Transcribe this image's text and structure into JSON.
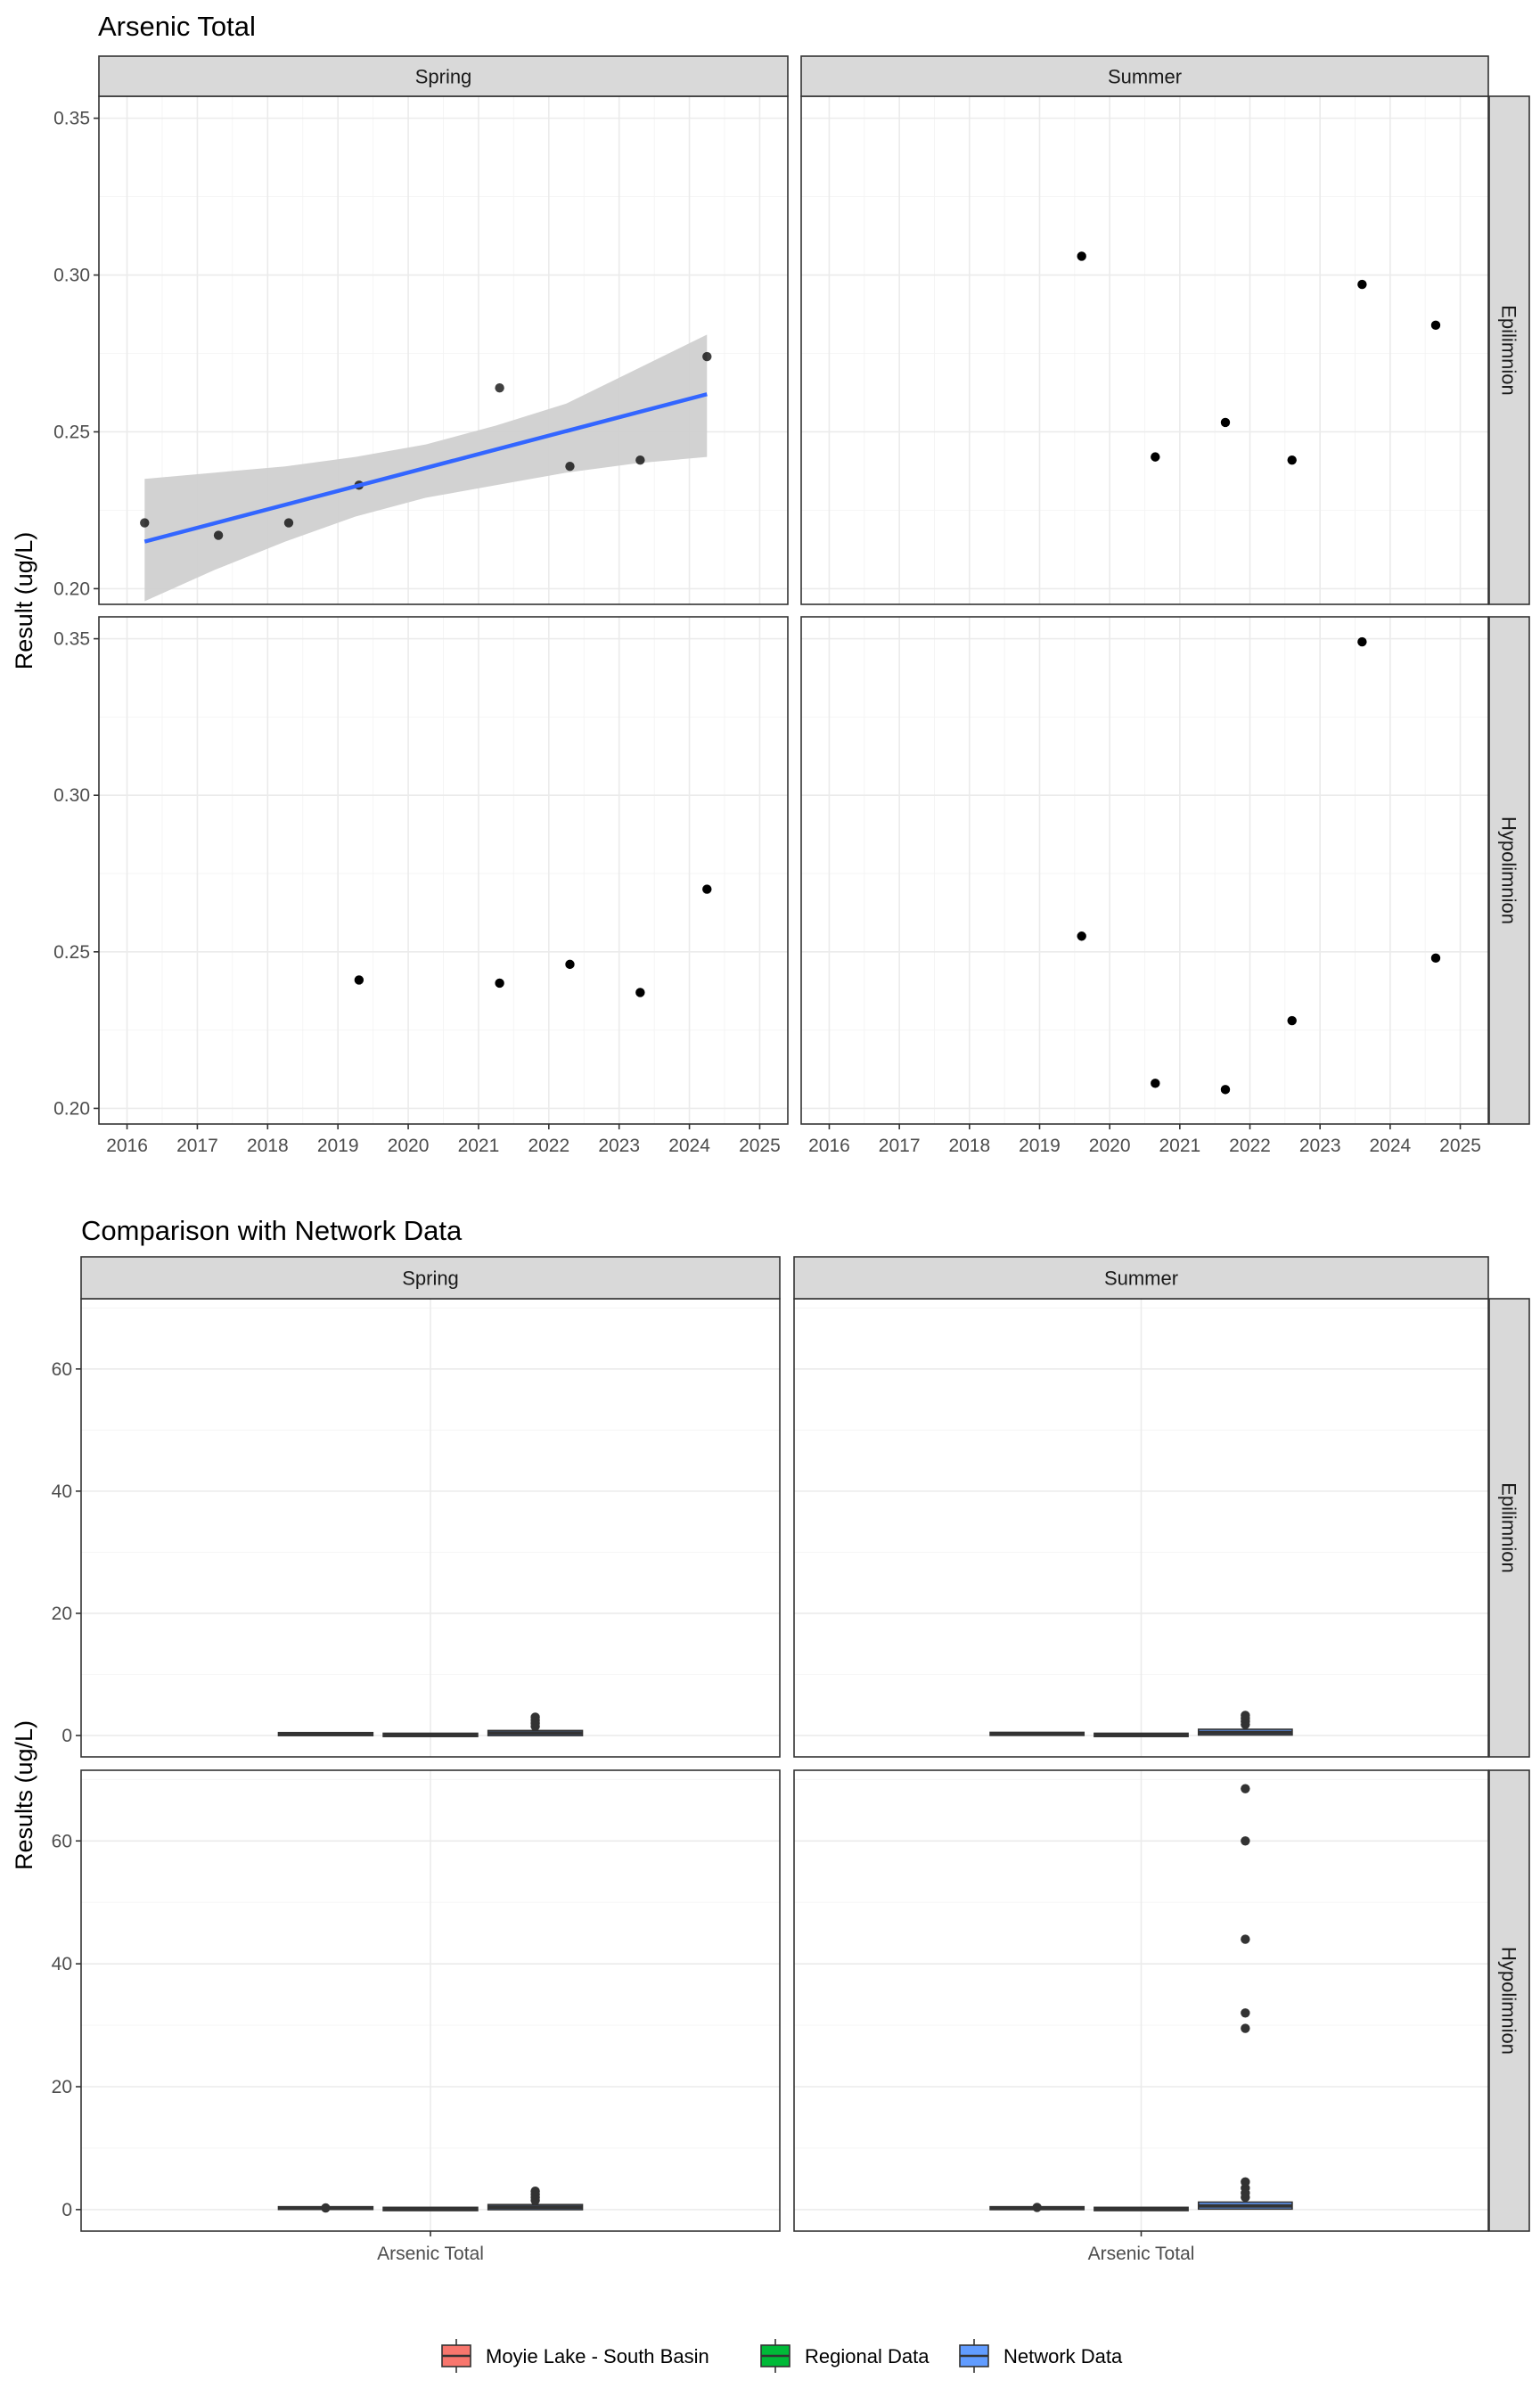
{
  "chart_data": [
    {
      "type": "scatter",
      "title": "Arsenic Total",
      "ylabel": "Result (ug/L)",
      "xlabel": "",
      "x_ticks": [
        "2016",
        "2017",
        "2018",
        "2019",
        "2020",
        "2021",
        "2022",
        "2023",
        "2024",
        "2025"
      ],
      "y_ticks": [
        "0.20",
        "0.25",
        "0.30",
        "0.35"
      ],
      "xlim": [
        2015.6,
        2025.4
      ],
      "ylim": [
        0.195,
        0.357
      ],
      "grid": true,
      "col_facets": [
        "Spring",
        "Summer"
      ],
      "row_facets": [
        "Epilimnion",
        "Hypolimnion"
      ],
      "panels": [
        {
          "col": "Spring",
          "row": "Epilimnion",
          "points": [
            {
              "x": 2016.25,
              "y": 0.221
            },
            {
              "x": 2017.3,
              "y": 0.217
            },
            {
              "x": 2018.3,
              "y": 0.221
            },
            {
              "x": 2019.3,
              "y": 0.233
            },
            {
              "x": 2021.3,
              "y": 0.264
            },
            {
              "x": 2022.3,
              "y": 0.239
            },
            {
              "x": 2023.3,
              "y": 0.241
            },
            {
              "x": 2024.25,
              "y": 0.274
            }
          ],
          "trend": {
            "x": [
              2016.25,
              2024.25
            ],
            "y": [
              0.215,
              0.262
            ]
          },
          "band": {
            "x": [
              2016.25,
              2017.25,
              2018.25,
              2019.25,
              2020.25,
              2021.25,
              2022.25,
              2023.25,
              2024.25
            ],
            "lower": [
              0.196,
              0.206,
              0.215,
              0.223,
              0.229,
              0.233,
              0.237,
              0.24,
              0.242
            ],
            "upper": [
              0.235,
              0.237,
              0.239,
              0.242,
              0.246,
              0.252,
              0.259,
              0.27,
              0.281
            ]
          }
        },
        {
          "col": "Summer",
          "row": "Epilimnion",
          "points": [
            {
              "x": 2019.6,
              "y": 0.306
            },
            {
              "x": 2020.65,
              "y": 0.242
            },
            {
              "x": 2021.65,
              "y": 0.253
            },
            {
              "x": 2022.6,
              "y": 0.241
            },
            {
              "x": 2023.6,
              "y": 0.297
            },
            {
              "x": 2024.65,
              "y": 0.284
            }
          ]
        },
        {
          "col": "Spring",
          "row": "Hypolimnion",
          "points": [
            {
              "x": 2019.3,
              "y": 0.241
            },
            {
              "x": 2021.3,
              "y": 0.24
            },
            {
              "x": 2022.3,
              "y": 0.246
            },
            {
              "x": 2023.3,
              "y": 0.237
            },
            {
              "x": 2024.25,
              "y": 0.27
            }
          ]
        },
        {
          "col": "Summer",
          "row": "Hypolimnion",
          "points": [
            {
              "x": 2019.6,
              "y": 0.255
            },
            {
              "x": 2020.65,
              "y": 0.208
            },
            {
              "x": 2021.65,
              "y": 0.206
            },
            {
              "x": 2022.6,
              "y": 0.228
            },
            {
              "x": 2023.6,
              "y": 0.349
            },
            {
              "x": 2024.65,
              "y": 0.248
            }
          ]
        }
      ],
      "colors": {
        "point": "#000000",
        "trend": "#3366ff",
        "band": "#d0d0d0"
      }
    },
    {
      "type": "box",
      "title": "Comparison with Network Data",
      "ylabel": "Results (ug/L)",
      "xlabel": "",
      "categories": [
        "Arsenic Total"
      ],
      "y_ticks": [
        "0",
        "20",
        "40",
        "60"
      ],
      "ylim": [
        -3.5,
        71.5
      ],
      "grid": true,
      "col_facets": [
        "Spring",
        "Summer"
      ],
      "row_facets": [
        "Epilimnion",
        "Hypolimnion"
      ],
      "series": [
        {
          "name": "Moyie Lake - South Basin",
          "color": "#f8766d"
        },
        {
          "name": "Regional Data",
          "color": "#00ba38"
        },
        {
          "name": "Network Data",
          "color": "#619cff"
        }
      ],
      "legend_position": "bottom",
      "panels": [
        {
          "col": "Spring",
          "row": "Epilimnion",
          "boxes": [
            {
              "series": "Moyie Lake - South Basin",
              "q1": 0.2,
              "median": 0.23,
              "q3": 0.26,
              "whisker_low": 0.2,
              "whisker_high": 0.27,
              "outliers": []
            },
            {
              "series": "Regional Data",
              "q1": 0.05,
              "median": 0.1,
              "q3": 0.15,
              "whisker_low": 0.02,
              "whisker_high": 0.2,
              "outliers": []
            },
            {
              "series": "Network Data",
              "q1": 0.2,
              "median": 0.4,
              "q3": 0.6,
              "whisker_low": 0.05,
              "whisker_high": 1.0,
              "outliers": [
                1.5,
                2.0,
                2.5,
                3.0
              ]
            }
          ]
        },
        {
          "col": "Summer",
          "row": "Epilimnion",
          "boxes": [
            {
              "series": "Moyie Lake - South Basin",
              "q1": 0.24,
              "median": 0.27,
              "q3": 0.3,
              "whisker_low": 0.24,
              "whisker_high": 0.31,
              "outliers": []
            },
            {
              "series": "Regional Data",
              "q1": 0.05,
              "median": 0.1,
              "q3": 0.15,
              "whisker_low": 0.02,
              "whisker_high": 0.2,
              "outliers": []
            },
            {
              "series": "Network Data",
              "q1": 0.3,
              "median": 0.5,
              "q3": 0.8,
              "whisker_low": 0.05,
              "whisker_high": 1.2,
              "outliers": [
                1.8,
                2.3,
                2.8,
                3.3
              ]
            }
          ]
        },
        {
          "col": "Spring",
          "row": "Hypolimnion",
          "boxes": [
            {
              "series": "Moyie Lake - South Basin",
              "q1": 0.24,
              "median": 0.242,
              "q3": 0.25,
              "whisker_low": 0.237,
              "whisker_high": 0.27,
              "outliers": [
                0.27
              ]
            },
            {
              "series": "Regional Data",
              "q1": 0.05,
              "median": 0.1,
              "q3": 0.15,
              "whisker_low": 0.02,
              "whisker_high": 0.2,
              "outliers": []
            },
            {
              "series": "Network Data",
              "q1": 0.2,
              "median": 0.4,
              "q3": 0.6,
              "whisker_low": 0.05,
              "whisker_high": 1.0,
              "outliers": [
                1.5,
                2.0,
                2.5,
                3.0
              ]
            }
          ]
        },
        {
          "col": "Summer",
          "row": "Hypolimnion",
          "boxes": [
            {
              "series": "Moyie Lake - South Basin",
              "q1": 0.21,
              "median": 0.24,
              "q3": 0.25,
              "whisker_low": 0.206,
              "whisker_high": 0.26,
              "outliers": [
                0.35
              ]
            },
            {
              "series": "Regional Data",
              "q1": 0.05,
              "median": 0.1,
              "q3": 0.15,
              "whisker_low": 0.02,
              "whisker_high": 0.2,
              "outliers": []
            },
            {
              "series": "Network Data",
              "q1": 0.3,
              "median": 0.6,
              "q3": 1.0,
              "whisker_low": 0.05,
              "whisker_high": 1.5,
              "outliers": [
                2.0,
                2.7,
                3.5,
                4.5,
                29.5,
                32.0,
                44.0,
                60.0,
                68.5
              ]
            }
          ]
        }
      ]
    }
  ]
}
